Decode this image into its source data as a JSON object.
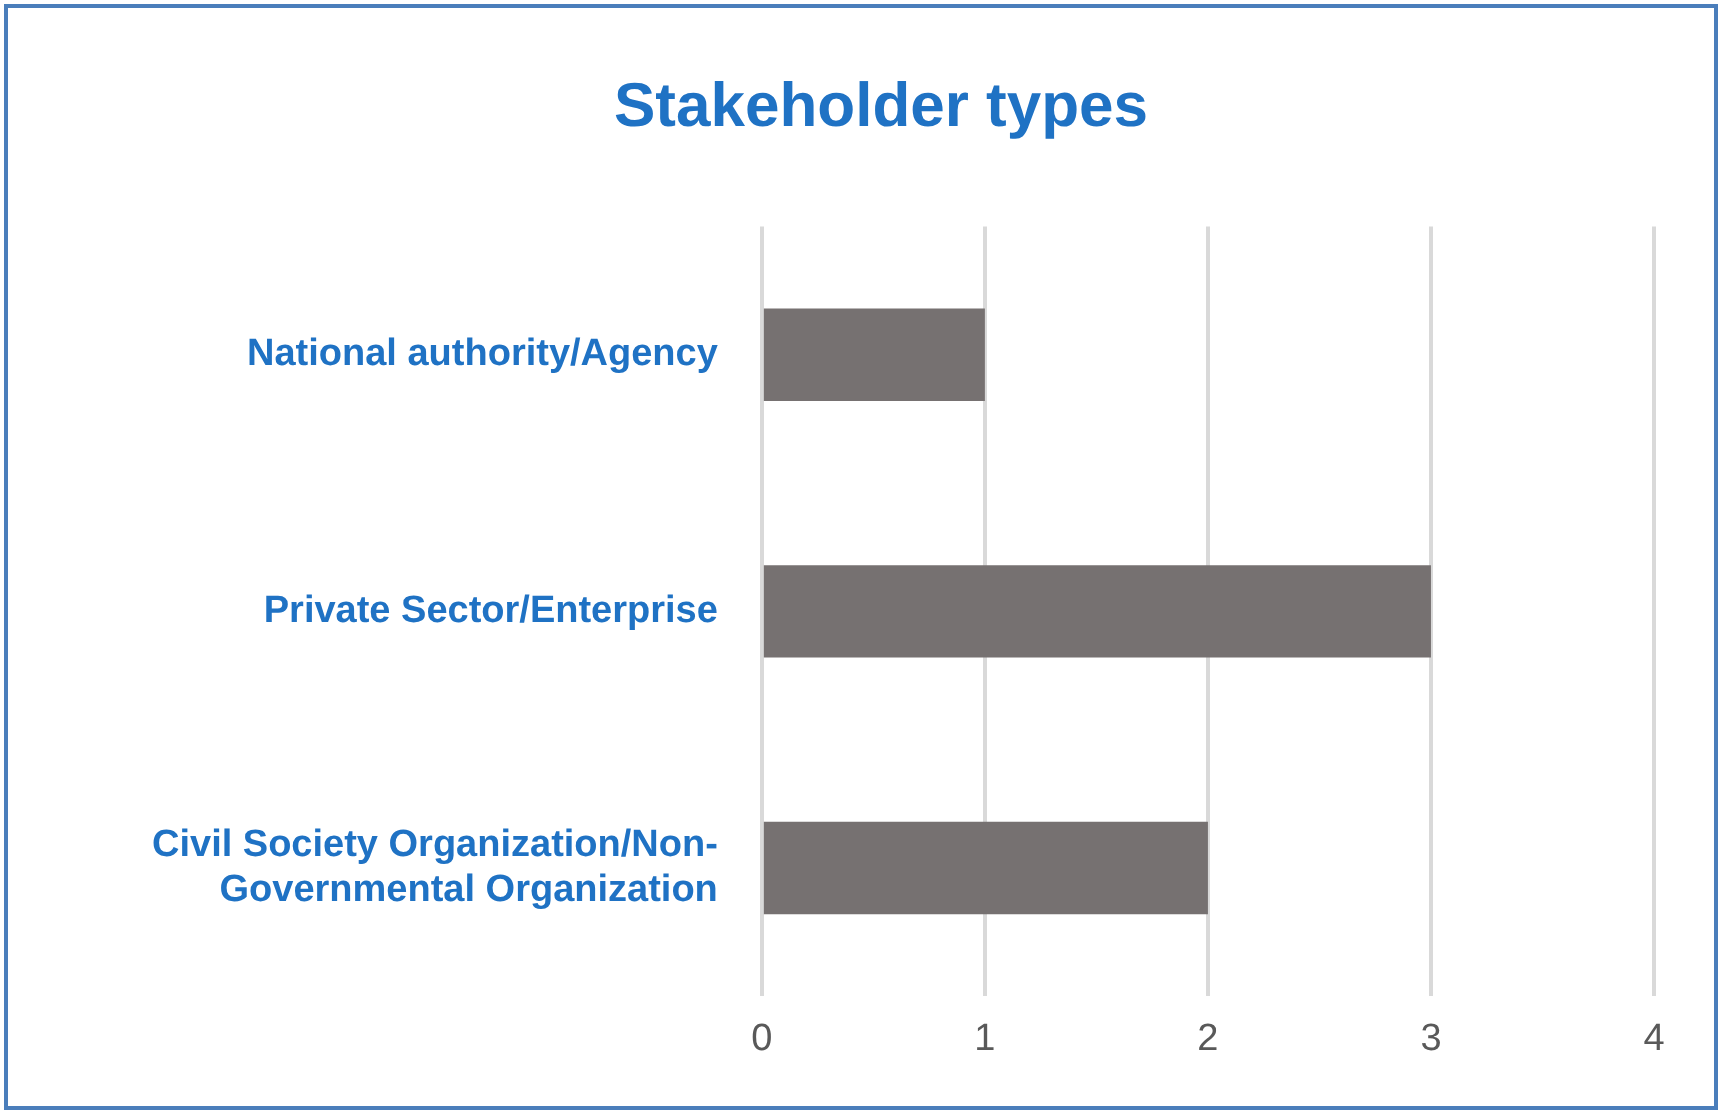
{
  "chart_data": {
    "type": "bar",
    "orientation": "horizontal",
    "title": "Stakeholder types",
    "categories": [
      "National authority/Agency",
      "Private Sector/Enterprise",
      "Civil Society Organization/Non-Governmental Organization"
    ],
    "values": [
      1,
      3,
      2
    ],
    "color": "#767171",
    "xlim": [
      0,
      4
    ],
    "xticks": [
      0,
      1,
      2,
      3,
      4
    ],
    "grid": "x",
    "legend": false
  }
}
